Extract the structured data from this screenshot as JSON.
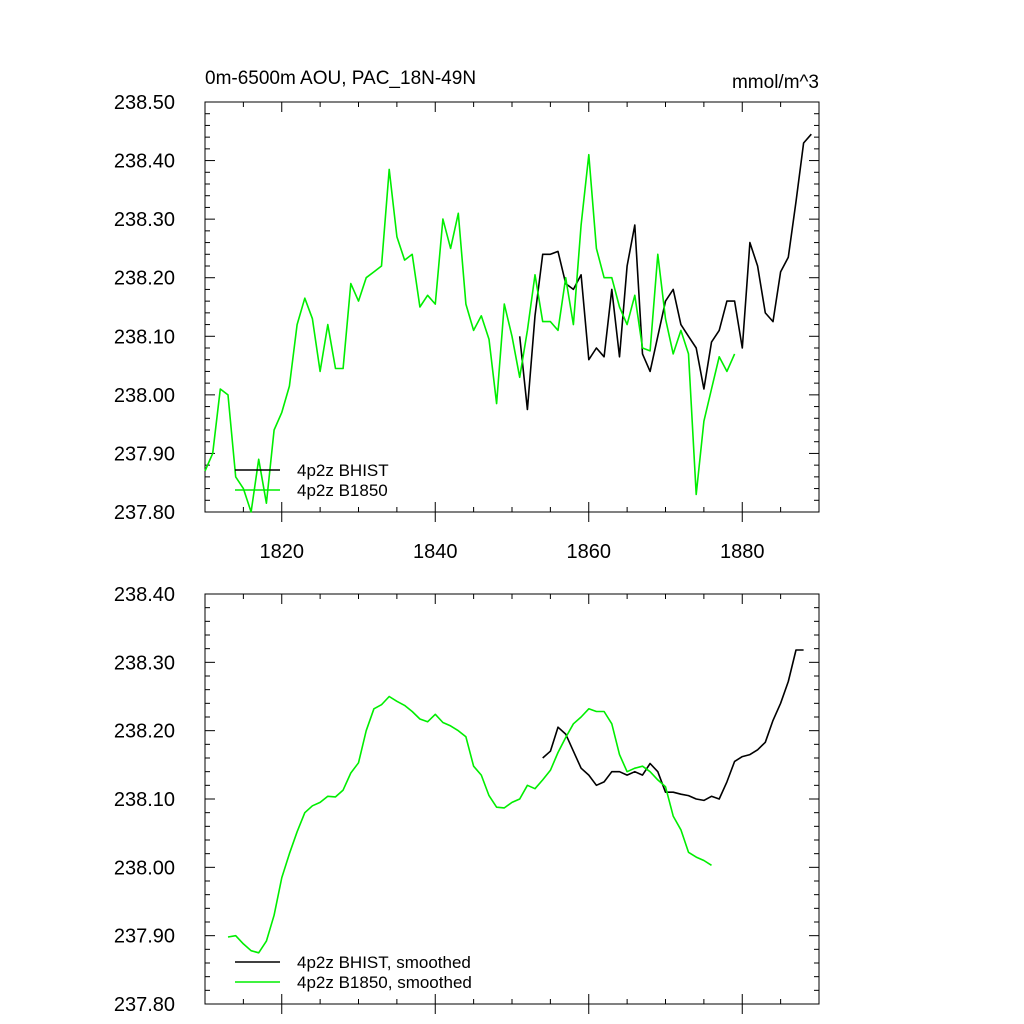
{
  "chart_data": [
    {
      "type": "line",
      "title": "0m-6500m AOU, PAC_18N-49N",
      "units": "mmol/m^3",
      "xlim": [
        1810,
        1890
      ],
      "ylim": [
        237.8,
        238.5
      ],
      "xticks": [
        1820,
        1840,
        1860,
        1880
      ],
      "xtick_labels": [
        "1820",
        "1840",
        "1860",
        "1880"
      ],
      "yticks": [
        237.8,
        237.9,
        238.0,
        238.1,
        238.2,
        238.3,
        238.4,
        238.5
      ],
      "ytick_labels": [
        "237.80",
        "237.90",
        "238.00",
        "238.10",
        "238.20",
        "238.30",
        "238.40",
        "238.50"
      ],
      "legend_position": "bottom-left",
      "series": [
        {
          "name": "4p2z BHIST",
          "color": "#000000",
          "x": [
            1851,
            1852,
            1853,
            1854,
            1855,
            1856,
            1857,
            1858,
            1859,
            1860,
            1861,
            1862,
            1863,
            1864,
            1865,
            1866,
            1867,
            1868,
            1869,
            1870,
            1871,
            1872,
            1873,
            1874,
            1875,
            1876,
            1877,
            1878,
            1879,
            1880,
            1881,
            1882,
            1883,
            1884,
            1885,
            1886,
            1887,
            1888,
            1889
          ],
          "values": [
            238.1,
            237.975,
            238.135,
            238.24,
            238.24,
            238.245,
            238.19,
            238.18,
            238.205,
            238.06,
            238.08,
            238.065,
            238.18,
            238.065,
            238.22,
            238.29,
            238.07,
            238.04,
            238.1,
            238.16,
            238.18,
            238.12,
            238.1,
            238.08,
            238.01,
            238.09,
            238.11,
            238.16,
            238.16,
            238.08,
            238.26,
            238.22,
            238.14,
            238.125,
            238.21,
            238.235,
            238.33,
            238.43,
            238.445
          ]
        },
        {
          "name": "4p2z B1850",
          "color": "#00ee00",
          "x": [
            1810,
            1811,
            1812,
            1813,
            1814,
            1815,
            1816,
            1817,
            1818,
            1819,
            1820,
            1821,
            1822,
            1823,
            1824,
            1825,
            1826,
            1827,
            1828,
            1829,
            1830,
            1831,
            1832,
            1833,
            1834,
            1835,
            1836,
            1837,
            1838,
            1839,
            1840,
            1841,
            1842,
            1843,
            1844,
            1845,
            1846,
            1847,
            1848,
            1849,
            1850,
            1851,
            1852,
            1853,
            1854,
            1855,
            1856,
            1857,
            1858,
            1859,
            1860,
            1861,
            1862,
            1863,
            1864,
            1865,
            1866,
            1867,
            1868,
            1869,
            1870,
            1871,
            1872,
            1873,
            1874,
            1875,
            1876,
            1877,
            1878,
            1879
          ],
          "values": [
            237.87,
            237.9,
            238.01,
            238.0,
            237.86,
            237.84,
            237.8,
            237.89,
            237.815,
            237.94,
            237.97,
            238.015,
            238.12,
            238.165,
            238.13,
            238.04,
            238.12,
            238.045,
            238.045,
            238.19,
            238.16,
            238.2,
            238.21,
            238.22,
            238.385,
            238.27,
            238.23,
            238.24,
            238.15,
            238.17,
            238.155,
            238.3,
            238.25,
            238.31,
            238.155,
            238.11,
            238.135,
            238.095,
            237.985,
            238.155,
            238.1,
            238.03,
            238.11,
            238.205,
            238.125,
            238.125,
            238.11,
            238.2,
            238.12,
            238.29,
            238.41,
            238.25,
            238.2,
            238.2,
            238.15,
            238.12,
            238.17,
            238.08,
            238.075,
            238.24,
            238.13,
            238.07,
            238.11,
            238.07,
            237.83,
            237.955,
            238.01,
            238.065,
            238.04,
            238.07
          ]
        }
      ]
    },
    {
      "type": "line",
      "title": "",
      "xlim": [
        1810,
        1890
      ],
      "ylim": [
        237.8,
        238.4
      ],
      "xticks": [
        1820,
        1840,
        1860,
        1880
      ],
      "yticks": [
        237.8,
        237.9,
        238.0,
        238.1,
        238.2,
        238.3,
        238.4
      ],
      "ytick_labels": [
        "237.80",
        "237.90",
        "238.00",
        "238.10",
        "238.20",
        "238.30",
        "238.40"
      ],
      "legend_position": "bottom-left",
      "series": [
        {
          "name": "4p2z BHIST, smoothed",
          "color": "#000000",
          "x": [
            1854,
            1855,
            1856,
            1857,
            1858,
            1859,
            1860,
            1861,
            1862,
            1863,
            1864,
            1865,
            1866,
            1867,
            1868,
            1869,
            1870,
            1871,
            1872,
            1873,
            1874,
            1875,
            1876,
            1877,
            1878,
            1879,
            1880,
            1881,
            1882,
            1883,
            1884,
            1885,
            1886,
            1887,
            1888
          ],
          "values": [
            238.16,
            238.17,
            238.205,
            238.195,
            238.17,
            238.145,
            238.135,
            238.12,
            238.125,
            238.14,
            238.14,
            238.135,
            238.14,
            238.135,
            238.152,
            238.14,
            238.11,
            238.11,
            238.107,
            238.105,
            238.1,
            238.098,
            238.104,
            238.1,
            238.125,
            238.155,
            238.162,
            238.165,
            238.172,
            238.183,
            238.215,
            238.24,
            238.272,
            238.318,
            238.318
          ]
        },
        {
          "name": "4p2z B1850, smoothed",
          "color": "#00ee00",
          "x": [
            1813,
            1814,
            1815,
            1816,
            1817,
            1818,
            1819,
            1820,
            1821,
            1822,
            1823,
            1824,
            1825,
            1826,
            1827,
            1828,
            1829,
            1830,
            1831,
            1832,
            1833,
            1834,
            1835,
            1836,
            1837,
            1838,
            1839,
            1840,
            1841,
            1842,
            1843,
            1844,
            1845,
            1846,
            1847,
            1848,
            1849,
            1850,
            1851,
            1852,
            1853,
            1854,
            1855,
            1856,
            1857,
            1858,
            1859,
            1860,
            1861,
            1862,
            1863,
            1864,
            1865,
            1866,
            1867,
            1868,
            1869,
            1870,
            1871,
            1872,
            1873,
            1874,
            1875,
            1876
          ],
          "values": [
            237.898,
            237.9,
            237.888,
            237.878,
            237.875,
            237.892,
            237.93,
            237.985,
            238.02,
            238.052,
            238.08,
            238.09,
            238.095,
            238.104,
            238.103,
            238.113,
            238.138,
            238.153,
            238.2,
            238.232,
            238.238,
            238.25,
            238.243,
            238.237,
            238.228,
            238.217,
            238.213,
            238.224,
            238.212,
            238.207,
            238.2,
            238.191,
            238.148,
            238.135,
            238.105,
            238.088,
            238.087,
            238.095,
            238.1,
            238.12,
            238.115,
            238.128,
            238.142,
            238.168,
            238.19,
            238.21,
            238.22,
            238.232,
            238.228,
            238.228,
            238.21,
            238.165,
            238.14,
            238.145,
            238.148,
            238.14,
            238.128,
            238.118,
            238.075,
            238.055,
            238.022,
            238.015,
            238.01,
            238.003
          ]
        }
      ]
    }
  ]
}
